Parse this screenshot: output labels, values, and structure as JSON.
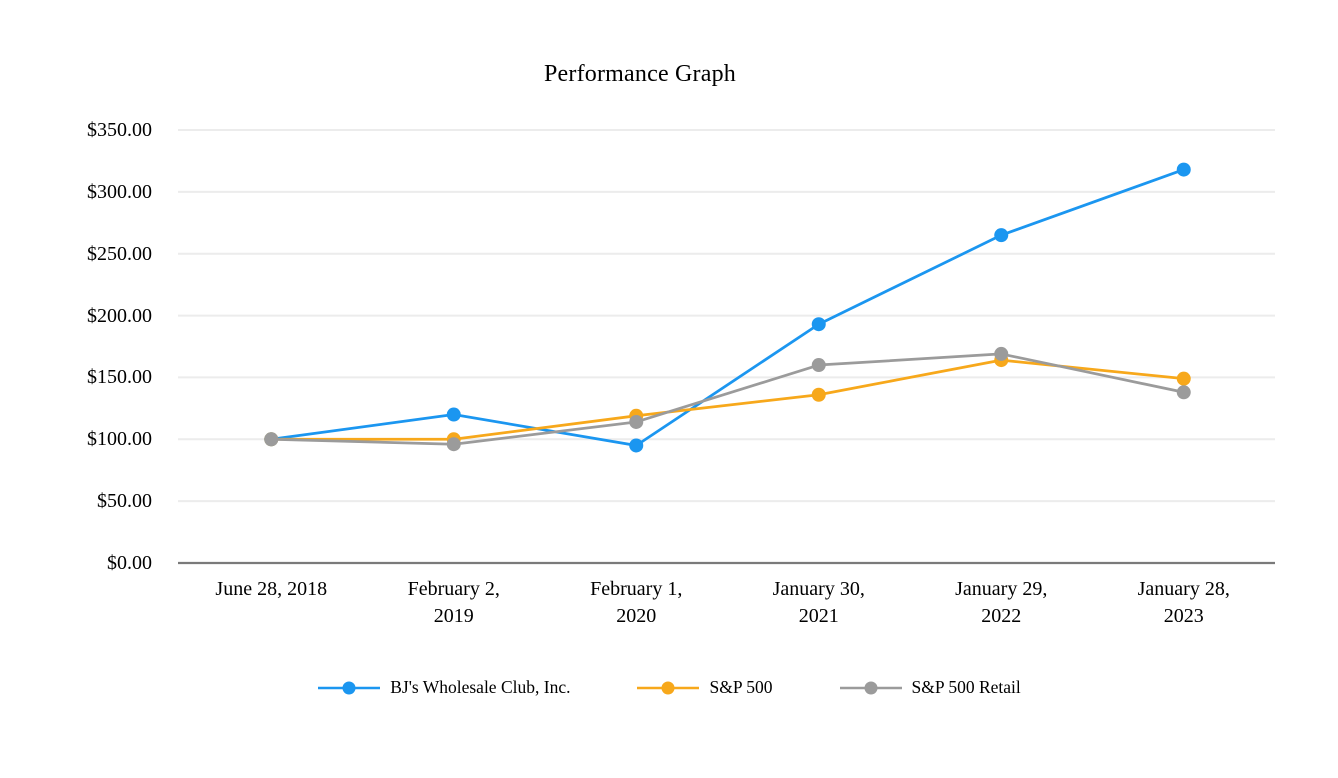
{
  "chart_data": {
    "type": "line",
    "title": "Performance Graph",
    "xlabel": "",
    "ylabel": "",
    "ylim": [
      0,
      350
    ],
    "grid": "horizontal",
    "legend_position": "bottom",
    "x": [
      "June 28, 2018",
      "February 2, 2019",
      "February 1, 2020",
      "January 30, 2021",
      "January 29, 2022",
      "January 28, 2023"
    ],
    "x_tick_lines": [
      [
        "June 28, 2018"
      ],
      [
        "February 2,",
        "2019"
      ],
      [
        "February 1,",
        "2020"
      ],
      [
        "January 30,",
        "2021"
      ],
      [
        "January 29,",
        "2022"
      ],
      [
        "January 28,",
        "2023"
      ]
    ],
    "y_ticks": [
      {
        "value": 350,
        "label": "$350.00"
      },
      {
        "value": 300,
        "label": "$300.00"
      },
      {
        "value": 250,
        "label": "$250.00"
      },
      {
        "value": 200,
        "label": "$200.00"
      },
      {
        "value": 150,
        "label": "$150.00"
      },
      {
        "value": 100,
        "label": "$100.00"
      },
      {
        "value": 50,
        "label": "$50.00"
      },
      {
        "value": 0,
        "label": "$0.00"
      }
    ],
    "series": [
      {
        "name": "BJ's Wholesale Club, Inc.",
        "color": "#1B96F0",
        "values": [
          100,
          120,
          95,
          193,
          265,
          318
        ]
      },
      {
        "name": "S&P 500",
        "color": "#F7A81B",
        "values": [
          100,
          100,
          119,
          136,
          164,
          149
        ]
      },
      {
        "name": "S&P 500 Retail",
        "color": "#9B9B9B",
        "values": [
          100,
          96,
          114,
          160,
          169,
          138
        ]
      }
    ],
    "colors": {
      "gridline": "#ECECEC",
      "axis": "#7A7A7A",
      "text": "#000000",
      "background": "#FFFFFF"
    }
  }
}
